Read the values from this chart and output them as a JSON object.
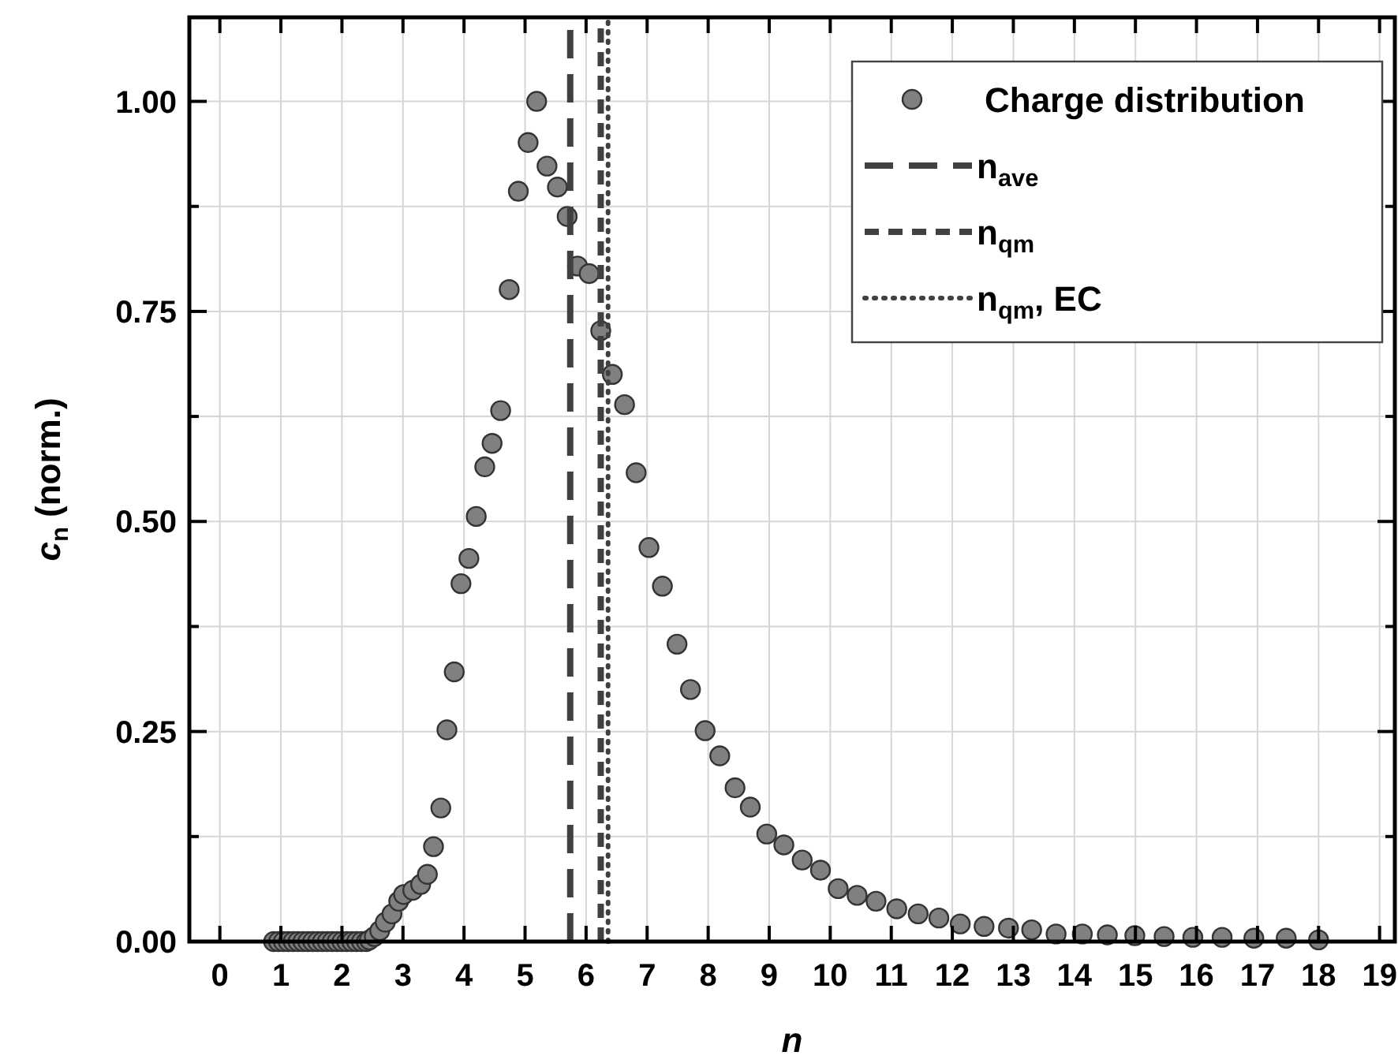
{
  "chart_data": {
    "type": "scatter",
    "xlabel": "n",
    "ylabel": "c$_{n}$ (norm.)",
    "xlim": [
      -0.5,
      19.25
    ],
    "ylim": [
      0,
      1.1
    ],
    "xticks": [
      0,
      1,
      2,
      3,
      4,
      5,
      6,
      7,
      8,
      9,
      10,
      11,
      12,
      13,
      14,
      15,
      16,
      17,
      18,
      19
    ],
    "yticks": [
      {
        "value": 0,
        "label": "0.00"
      },
      {
        "value": 0.125,
        "label": null
      },
      {
        "value": 0.25,
        "label": "0.25"
      },
      {
        "value": 0.375,
        "label": null
      },
      {
        "value": 0.5,
        "label": "0.50"
      },
      {
        "value": 0.625,
        "label": null
      },
      {
        "value": 0.75,
        "label": "0.75"
      },
      {
        "value": 0.875,
        "label": null
      },
      {
        "value": 1,
        "label": "1.00"
      }
    ],
    "grid": true,
    "legend": "top right",
    "marker": "circle",
    "series": [
      {
        "name": "Charge distribution",
        "color": "#808080",
        "x": [
          0.88,
          0.96,
          1.04,
          1.12,
          1.2,
          1.28,
          1.36,
          1.44,
          1.52,
          1.6,
          1.68,
          1.76,
          1.84,
          1.92,
          2.0,
          2.08,
          2.16,
          2.24,
          2.32,
          2.4,
          2.45,
          2.53,
          2.62,
          2.71,
          2.82,
          2.93,
          3.01,
          3.16,
          3.29,
          3.4,
          3.5,
          3.62,
          3.72,
          3.84,
          3.95,
          4.08,
          4.2,
          4.34,
          4.46,
          4.6,
          4.74,
          4.89,
          5.05,
          5.19,
          5.36,
          5.53,
          5.69,
          5.86,
          6.05,
          6.24,
          6.43,
          6.63,
          6.82,
          7.03,
          7.25,
          7.49,
          7.71,
          7.95,
          8.19,
          8.44,
          8.69,
          8.96,
          9.24,
          9.54,
          9.84,
          10.13,
          10.44,
          10.75,
          11.09,
          11.44,
          11.78,
          12.13,
          12.52,
          12.92,
          13.3,
          13.7,
          14.13,
          14.54,
          14.99,
          15.47,
          15.94,
          16.42,
          16.94,
          17.47,
          18.0
        ],
        "values": [
          0,
          0,
          0,
          0,
          0,
          0,
          0,
          0,
          0,
          0,
          0,
          0,
          0,
          0,
          0,
          0,
          0,
          0,
          0,
          0,
          0.002,
          0.006,
          0.013,
          0.023,
          0.033,
          0.048,
          0.056,
          0.061,
          0.068,
          0.08,
          0.113,
          0.159,
          0.252,
          0.321,
          0.426,
          0.456,
          0.506,
          0.565,
          0.593,
          0.632,
          0.776,
          0.893,
          0.951,
          1.0,
          0.923,
          0.898,
          0.863,
          0.804,
          0.795,
          0.727,
          0.675,
          0.639,
          0.558,
          0.469,
          0.423,
          0.354,
          0.3,
          0.251,
          0.221,
          0.183,
          0.16,
          0.128,
          0.115,
          0.097,
          0.085,
          0.063,
          0.055,
          0.048,
          0.039,
          0.033,
          0.028,
          0.021,
          0.018,
          0.016,
          0.014,
          0.009,
          0.009,
          0.008,
          0.007,
          0.006,
          0.005,
          0.005,
          0.004,
          0.004,
          0.002
        ]
      },
      {
        "type": "line",
        "name": "n$_{ave}$",
        "color": "#404040",
        "line_style": "dashed",
        "marker": "none",
        "x": [
          5.74,
          5.74
        ],
        "values": [
          0,
          1.1
        ]
      },
      {
        "type": "line",
        "name": "n$_{qm}$",
        "color": "#404040",
        "line_style": "dashed",
        "marker": "none",
        "x": [
          6.24,
          6.24
        ],
        "values": [
          0,
          1.1
        ]
      },
      {
        "type": "line",
        "name": "n$_{qm}$, EC",
        "color": "#404040",
        "line_style": "dotted",
        "marker": "none",
        "x": [
          6.36,
          6.36
        ],
        "values": [
          0,
          1.1
        ]
      }
    ]
  }
}
